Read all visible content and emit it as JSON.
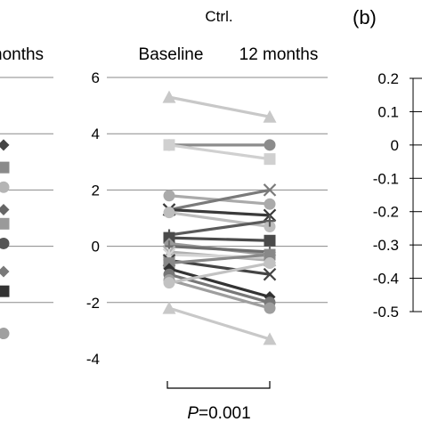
{
  "left_panel": {
    "header_fragment": "nonths",
    "marker_levels": [
      3.6,
      2.8,
      2.1,
      1.3,
      0.8,
      0.1,
      -0.9,
      -1.6,
      -3.1
    ]
  },
  "panel_b_label": "(b)",
  "chart_data": [
    {
      "type": "line",
      "title": "Ctrl.",
      "categories": [
        "Baseline",
        "12 months"
      ],
      "ylim": [
        -4,
        6
      ],
      "yticks": [
        "6",
        "4",
        "2",
        "0",
        "-2",
        "-4"
      ],
      "grid": true,
      "series": [
        {
          "values": [
            5.3,
            4.6
          ],
          "marker": "triangle",
          "color": "#c8c8c8"
        },
        {
          "values": [
            3.6,
            3.6
          ],
          "marker": "circle",
          "color": "#8c8c8c"
        },
        {
          "values": [
            3.6,
            3.1
          ],
          "marker": "square",
          "color": "#d0d0d0"
        },
        {
          "values": [
            1.8,
            1.5
          ],
          "marker": "circle",
          "color": "#aaaaaa"
        },
        {
          "values": [
            1.3,
            2.0
          ],
          "marker": "x",
          "color": "#7a7a7a"
        },
        {
          "values": [
            1.3,
            1.1
          ],
          "marker": "x",
          "color": "#3a3a3a"
        },
        {
          "values": [
            1.2,
            0.7
          ],
          "marker": "circle",
          "color": "#bdbdbd"
        },
        {
          "values": [
            0.4,
            0.9
          ],
          "marker": "plus",
          "color": "#5a5a5a"
        },
        {
          "values": [
            0.3,
            0.2
          ],
          "marker": "square",
          "color": "#4a4a4a"
        },
        {
          "values": [
            0.1,
            -0.3
          ],
          "marker": "diamond",
          "color": "#999999"
        },
        {
          "values": [
            0.0,
            -0.2
          ],
          "marker": "plus",
          "color": "#6e6e6e"
        },
        {
          "values": [
            -0.2,
            -0.5
          ],
          "marker": "x",
          "color": "#b0b0b0"
        },
        {
          "values": [
            -0.3,
            -0.4
          ],
          "marker": "star",
          "color": "#d4d4d4"
        },
        {
          "values": [
            -0.5,
            -1.0
          ],
          "marker": "x",
          "color": "#444444"
        },
        {
          "values": [
            -0.6,
            -0.3
          ],
          "marker": "square",
          "color": "#888888"
        },
        {
          "values": [
            -0.8,
            -1.8
          ],
          "marker": "diamond",
          "color": "#333333"
        },
        {
          "values": [
            -1.0,
            -2.0
          ],
          "marker": "circle",
          "color": "#777777"
        },
        {
          "values": [
            -1.2,
            -2.2
          ],
          "marker": "circle",
          "color": "#9e9e9e"
        },
        {
          "values": [
            -1.3,
            -0.6
          ],
          "marker": "circle",
          "color": "#c2c2c2"
        },
        {
          "values": [
            -2.2,
            -3.3
          ],
          "marker": "triangle",
          "color": "#c8c8c8"
        }
      ],
      "annotation": {
        "p_label": "P",
        "p_value": "=0.001"
      }
    },
    {
      "type": "line",
      "ylim": [
        -0.5,
        0.2
      ],
      "yticks": [
        "0.2",
        "0.1",
        "0",
        "-0.1",
        "-0.2",
        "-0.3",
        "-0.4",
        "-0.5"
      ],
      "grid": true
    }
  ]
}
